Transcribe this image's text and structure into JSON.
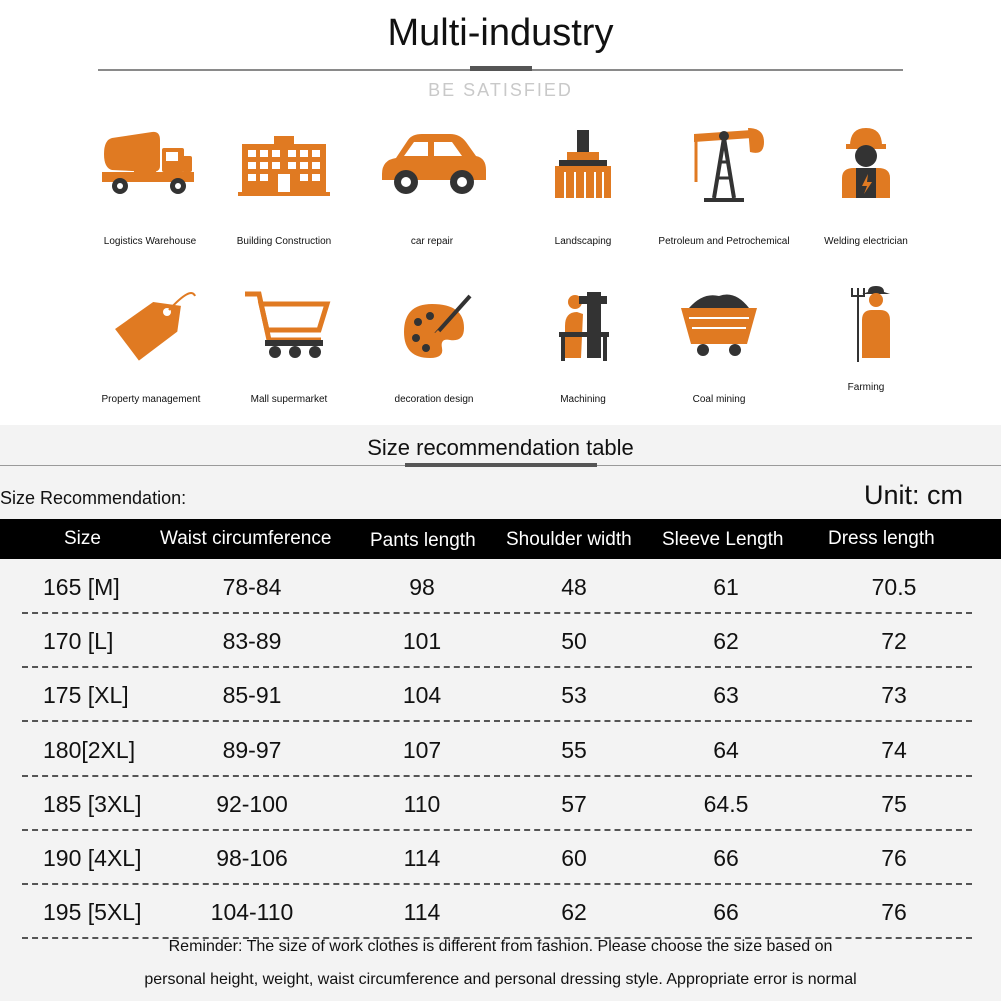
{
  "header": {
    "title": "Multi-industry",
    "subtitle": "BE SATISFIED"
  },
  "colors": {
    "icon_orange": "#e07a22",
    "header_bg": "#000000"
  },
  "industries": [
    {
      "label": "Logistics Warehouse",
      "icon": "cement-truck-icon"
    },
    {
      "label": "Building Construction",
      "icon": "building-icon"
    },
    {
      "label": "car repair",
      "icon": "car-icon"
    },
    {
      "label": "Landscaping",
      "icon": "brush-icon"
    },
    {
      "label": "Petroleum and Petrochemical",
      "icon": "oil-pump-icon"
    },
    {
      "label": "Welding electrician",
      "icon": "worker-icon"
    },
    {
      "label": "Property management",
      "icon": "price-tag-icon"
    },
    {
      "label": "Mall supermarket",
      "icon": "shopping-cart-icon"
    },
    {
      "label": "decoration design",
      "icon": "paint-palette-icon"
    },
    {
      "label": "Machining",
      "icon": "machinist-icon"
    },
    {
      "label": "Coal mining",
      "icon": "mine-cart-icon"
    },
    {
      "label": "Farming",
      "icon": "farmer-icon"
    }
  ],
  "size_section": {
    "title": "Size recommendation table",
    "recommendation_label": "Size Recommendation:",
    "unit": "Unit: cm",
    "headers": [
      "Size",
      "Waist circumference",
      "Pants length",
      "Shoulder width",
      "Sleeve Length",
      "Dress length"
    ],
    "rows": [
      [
        "165 [M]",
        "78-84",
        "98",
        "48",
        "61",
        "70.5"
      ],
      [
        "170  [L]",
        "83-89",
        "101",
        "50",
        "62",
        "72"
      ],
      [
        "175 [XL]",
        "85-91",
        "104",
        "53",
        "63",
        "73"
      ],
      [
        "180[2XL]",
        "89-97",
        "107",
        "55",
        "64",
        "74"
      ],
      [
        "185 [3XL]",
        "92-100",
        "110",
        "57",
        "64.5",
        "75"
      ],
      [
        "190 [4XL]",
        "98-106",
        "114",
        "60",
        "66",
        "76"
      ],
      [
        "195 [5XL]",
        "104-110",
        "114",
        "62",
        "66",
        "76"
      ]
    ],
    "reminder_line1": "Reminder: The size of work clothes is different from fashion. Please choose the size based on",
    "reminder_line2": "personal height, weight, waist circumference and personal dressing style. Appropriate error is normal"
  }
}
